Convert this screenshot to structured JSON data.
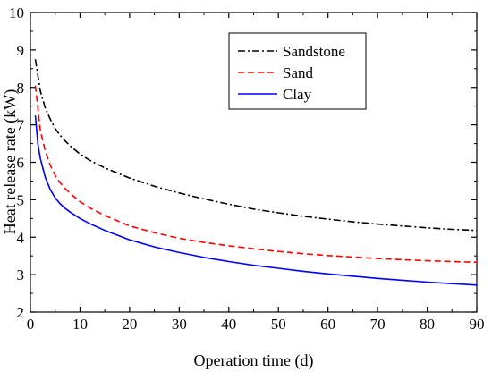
{
  "chart_data": {
    "type": "line",
    "xlabel": "Operation time (d)",
    "ylabel": "Heat release rate (kW)",
    "xlim": [
      0,
      90
    ],
    "ylim": [
      2,
      10
    ],
    "xticks": [
      0,
      10,
      20,
      30,
      40,
      50,
      60,
      70,
      80,
      90
    ],
    "yticks": [
      2,
      3,
      4,
      5,
      6,
      7,
      8,
      9,
      10
    ],
    "grid": false,
    "legend_position": "top-right",
    "series": [
      {
        "name": "Sandstone",
        "color": "#000000",
        "dash": "dash-dot",
        "x": [
          1,
          2,
          3,
          4,
          5,
          6,
          7,
          8,
          10,
          12,
          15,
          20,
          25,
          30,
          35,
          40,
          45,
          50,
          55,
          60,
          65,
          70,
          75,
          80,
          85,
          90
        ],
        "y": [
          8.75,
          7.9,
          7.45,
          7.15,
          6.9,
          6.72,
          6.57,
          6.44,
          6.22,
          6.05,
          5.85,
          5.58,
          5.36,
          5.18,
          5.02,
          4.88,
          4.75,
          4.65,
          4.56,
          4.48,
          4.41,
          4.35,
          4.3,
          4.25,
          4.21,
          4.18
        ]
      },
      {
        "name": "Sand",
        "color": "#ff0000",
        "dash": "dashed",
        "x": [
          1,
          2,
          3,
          4,
          5,
          6,
          7,
          8,
          10,
          12,
          15,
          20,
          25,
          30,
          35,
          40,
          45,
          50,
          55,
          60,
          65,
          70,
          75,
          80,
          85,
          90
        ],
        "y": [
          8.05,
          6.85,
          6.3,
          5.92,
          5.65,
          5.45,
          5.3,
          5.17,
          4.95,
          4.78,
          4.58,
          4.3,
          4.12,
          3.97,
          3.86,
          3.77,
          3.69,
          3.62,
          3.56,
          3.51,
          3.47,
          3.43,
          3.4,
          3.37,
          3.35,
          3.33
        ]
      },
      {
        "name": "Clay",
        "color": "#0000ff",
        "dash": "solid",
        "x": [
          1,
          1.5,
          2,
          3,
          4,
          5,
          6,
          7,
          8,
          10,
          12,
          15,
          20,
          25,
          30,
          35,
          40,
          45,
          50,
          55,
          60,
          65,
          70,
          75,
          80,
          85,
          90
        ],
        "y": [
          7.25,
          6.5,
          6.1,
          5.6,
          5.27,
          5.05,
          4.89,
          4.77,
          4.67,
          4.5,
          4.36,
          4.18,
          3.93,
          3.74,
          3.59,
          3.46,
          3.35,
          3.25,
          3.17,
          3.09,
          3.02,
          2.96,
          2.9,
          2.85,
          2.8,
          2.76,
          2.72
        ]
      }
    ]
  }
}
